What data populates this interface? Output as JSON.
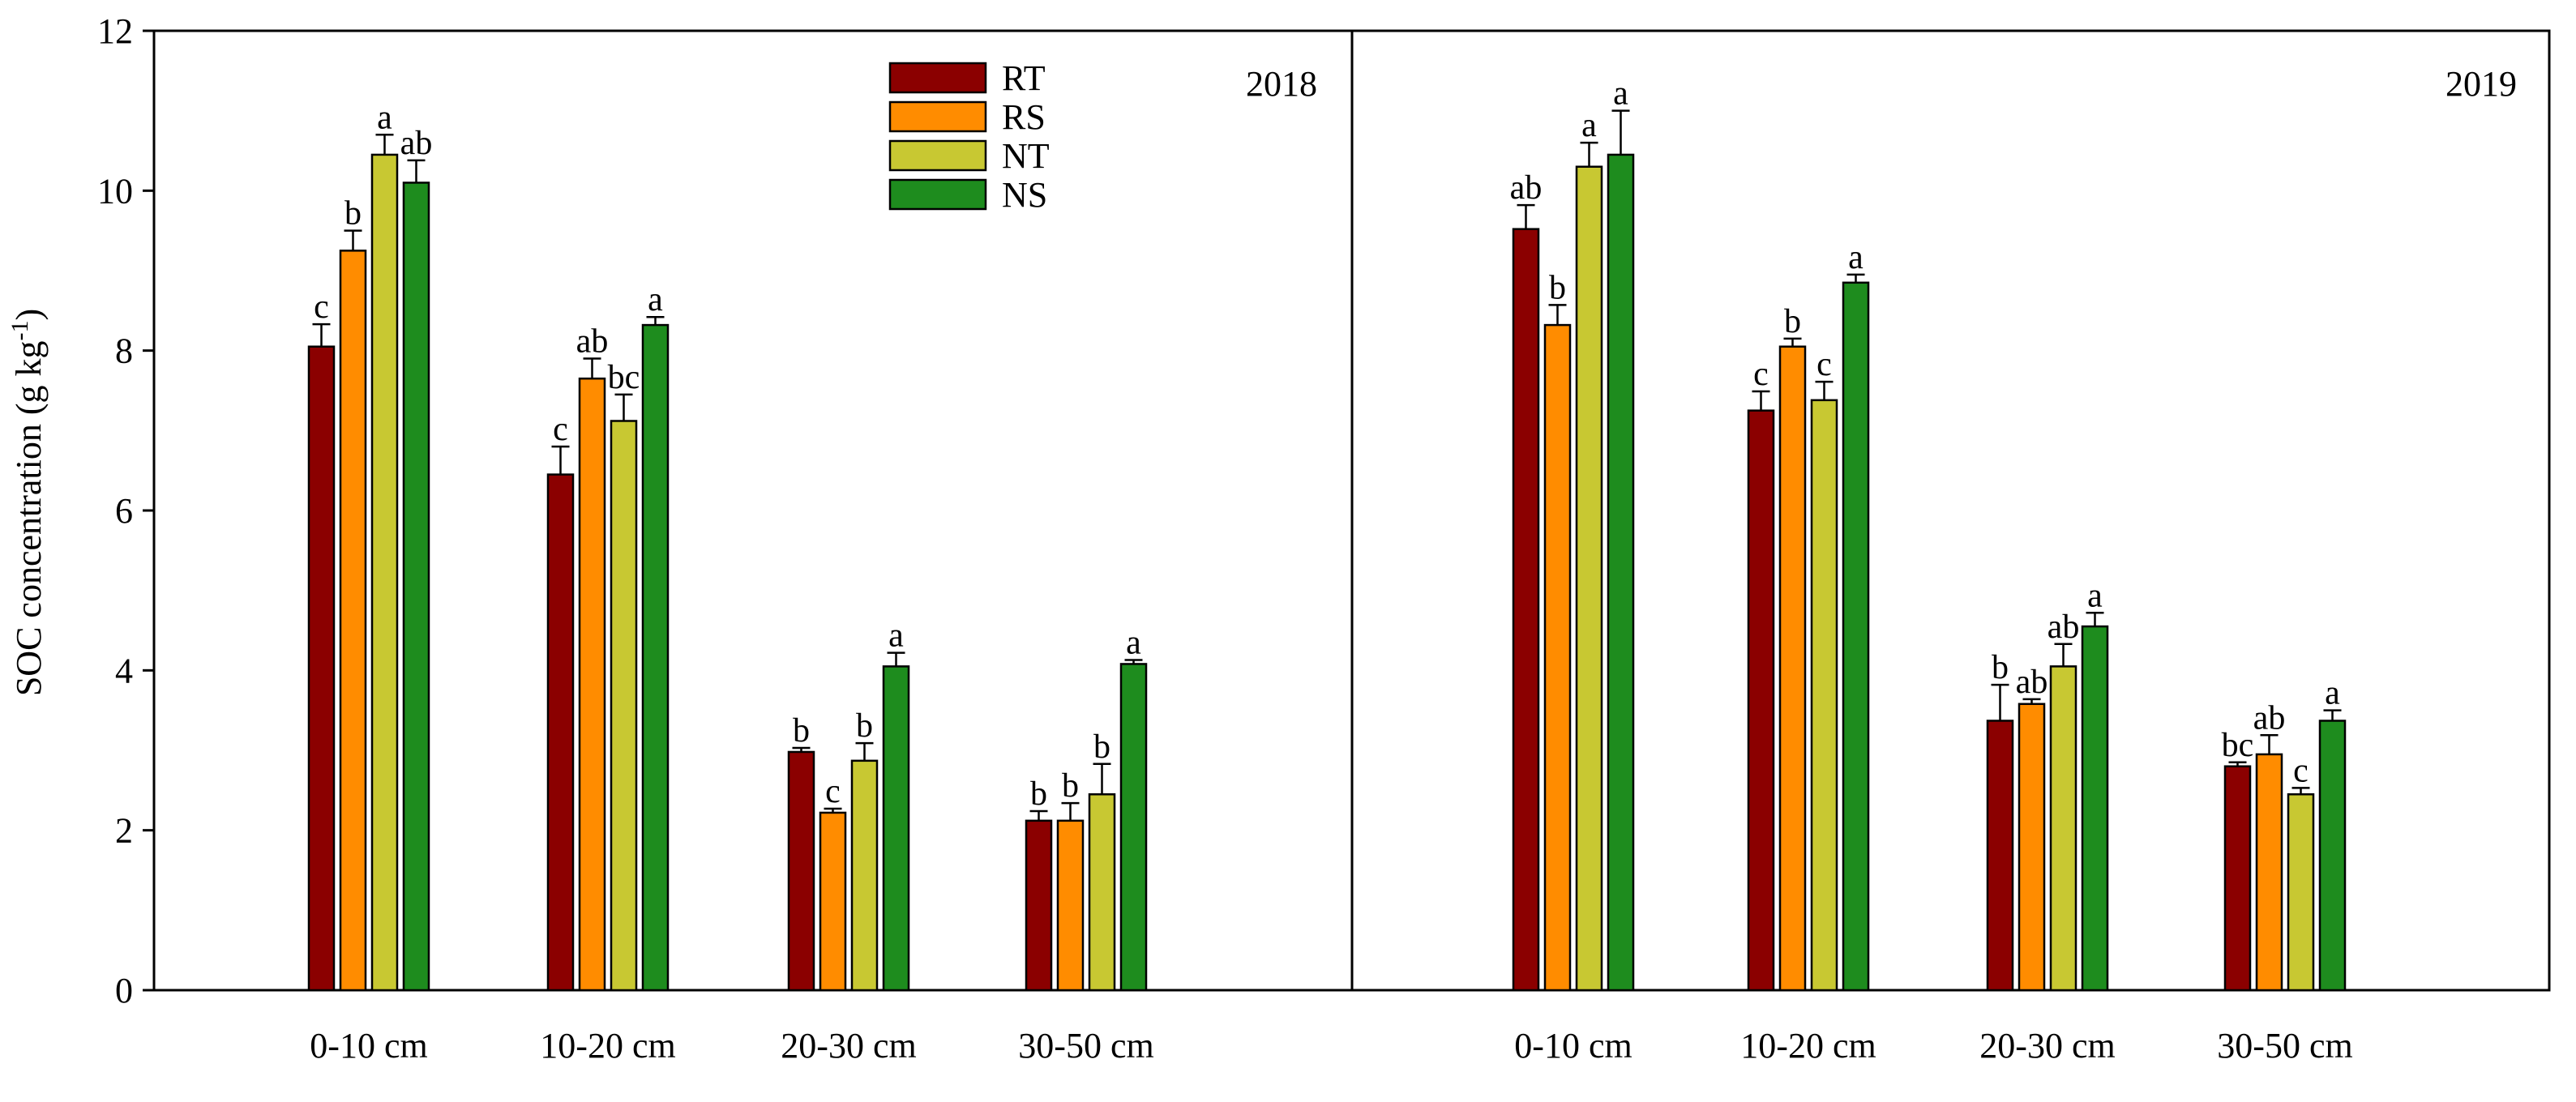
{
  "chart_data": {
    "type": "bar",
    "ylabel": "SOC concentration (g kg",
    "ylabel_superscript": "-1",
    "ylabel_close": ")",
    "ylim": [
      0,
      12
    ],
    "yticks": [
      "0",
      "2",
      "4",
      "6",
      "8",
      "10",
      "12"
    ],
    "categories": [
      "0-10 cm",
      "10-20 cm",
      "20-30 cm",
      "30-50 cm"
    ],
    "legend": {
      "position": "top-center-left",
      "entries": [
        {
          "name": "RT",
          "color": "#8B0000"
        },
        {
          "name": "RS",
          "color": "#FF8C00"
        },
        {
          "name": "NT",
          "color": "#C8C832"
        },
        {
          "name": "NS",
          "color": "#1E8C1E"
        }
      ]
    },
    "panels": [
      {
        "title": "2018",
        "series": [
          {
            "name": "RT",
            "values": [
              8.05,
              6.45,
              2.98,
              2.12
            ],
            "errors": [
              0.28,
              0.35,
              0.05,
              0.12
            ],
            "letters": [
              "c",
              "c",
              "b",
              "b"
            ]
          },
          {
            "name": "RS",
            "values": [
              9.25,
              7.65,
              2.22,
              2.12
            ],
            "errors": [
              0.25,
              0.25,
              0.05,
              0.22
            ],
            "letters": [
              "b",
              "ab",
              "c",
              "b"
            ]
          },
          {
            "name": "NT",
            "values": [
              10.45,
              7.12,
              2.87,
              2.45
            ],
            "errors": [
              0.25,
              0.33,
              0.22,
              0.38
            ],
            "letters": [
              "a",
              "bc",
              "b",
              "b"
            ]
          },
          {
            "name": "NS",
            "values": [
              10.1,
              8.32,
              4.05,
              4.08
            ],
            "errors": [
              0.28,
              0.1,
              0.17,
              0.05
            ],
            "letters": [
              "ab",
              "a",
              "a",
              "a"
            ]
          }
        ]
      },
      {
        "title": "2019",
        "series": [
          {
            "name": "RT",
            "values": [
              9.52,
              7.25,
              3.37,
              2.8
            ],
            "errors": [
              0.3,
              0.24,
              0.45,
              0.05
            ],
            "letters": [
              "ab",
              "c",
              "b",
              "bc"
            ]
          },
          {
            "name": "RS",
            "values": [
              8.32,
              8.05,
              3.58,
              2.95
            ],
            "errors": [
              0.25,
              0.1,
              0.06,
              0.24
            ],
            "letters": [
              "b",
              "b",
              "ab",
              "ab"
            ]
          },
          {
            "name": "NT",
            "values": [
              10.3,
              7.38,
              4.05,
              2.45
            ],
            "errors": [
              0.3,
              0.23,
              0.28,
              0.08
            ],
            "letters": [
              "a",
              "c",
              "ab",
              "c"
            ]
          },
          {
            "name": "NS",
            "values": [
              10.45,
              8.85,
              4.55,
              3.37
            ],
            "errors": [
              0.55,
              0.1,
              0.17,
              0.13
            ],
            "letters": [
              "a",
              "a",
              "a",
              "a"
            ]
          }
        ]
      }
    ]
  }
}
